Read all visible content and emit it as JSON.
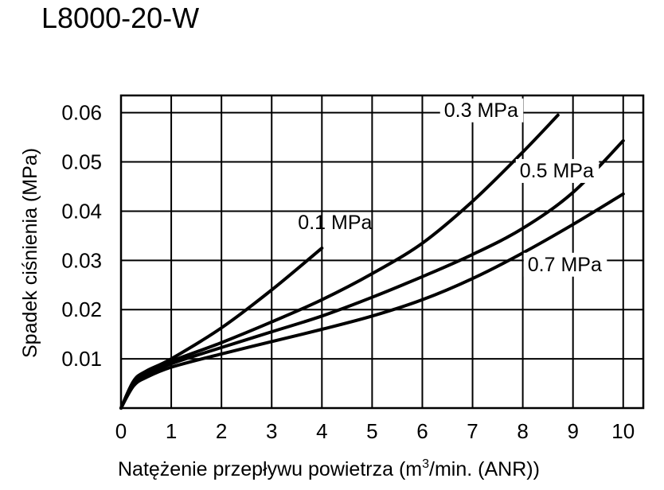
{
  "chart_data": {
    "type": "line",
    "title": "L8000-20-W",
    "xlabel": "Natężenie przepływu powietrza (m",
    "xlabel_sup": "3",
    "xlabel_tail": "/min. (ANR))",
    "ylabel": "Spadek ciśnienia  (MPa)",
    "xlim": [
      0,
      10.4
    ],
    "ylim": [
      0,
      0.0635
    ],
    "xticks": [
      "0",
      "1",
      "2",
      "3",
      "4",
      "5",
      "6",
      "7",
      "8",
      "9",
      "10"
    ],
    "yticks": [
      "0.01",
      "0.02",
      "0.03",
      "0.04",
      "0.05",
      "0.06"
    ],
    "grid": true,
    "series": [
      {
        "name": "0.1 MPa",
        "x": [
          0,
          0.25,
          0.5,
          1,
          2,
          3,
          4
        ],
        "y": [
          0,
          0.0055,
          0.0075,
          0.01,
          0.0163,
          0.024,
          0.0325
        ]
      },
      {
        "name": "0.3 MPa",
        "x": [
          0,
          0.25,
          0.5,
          1,
          2,
          3,
          4,
          5,
          6,
          7,
          8,
          8.7
        ],
        "y": [
          0,
          0.005,
          0.007,
          0.0095,
          0.0133,
          0.0175,
          0.022,
          0.0273,
          0.0335,
          0.042,
          0.052,
          0.0595
        ]
      },
      {
        "name": "0.5 MPa",
        "x": [
          0,
          0.25,
          0.5,
          1,
          2,
          3,
          4,
          5,
          6,
          7,
          8,
          9,
          10
        ],
        "y": [
          0,
          0.0048,
          0.0066,
          0.009,
          0.0123,
          0.0155,
          0.0187,
          0.0225,
          0.0267,
          0.0312,
          0.0365,
          0.0438,
          0.0543
        ]
      },
      {
        "name": "0.7 MPa",
        "x": [
          0,
          0.25,
          0.5,
          1,
          2,
          3,
          4,
          5,
          6,
          7,
          8,
          9,
          10
        ],
        "y": [
          0,
          0.0045,
          0.0062,
          0.0083,
          0.011,
          0.0135,
          0.016,
          0.0187,
          0.022,
          0.0263,
          0.0315,
          0.0373,
          0.0435
        ]
      }
    ],
    "label_positions": [
      "upper-right-of-line",
      "above-top-end",
      "above-right-end",
      "below-right-end"
    ]
  }
}
